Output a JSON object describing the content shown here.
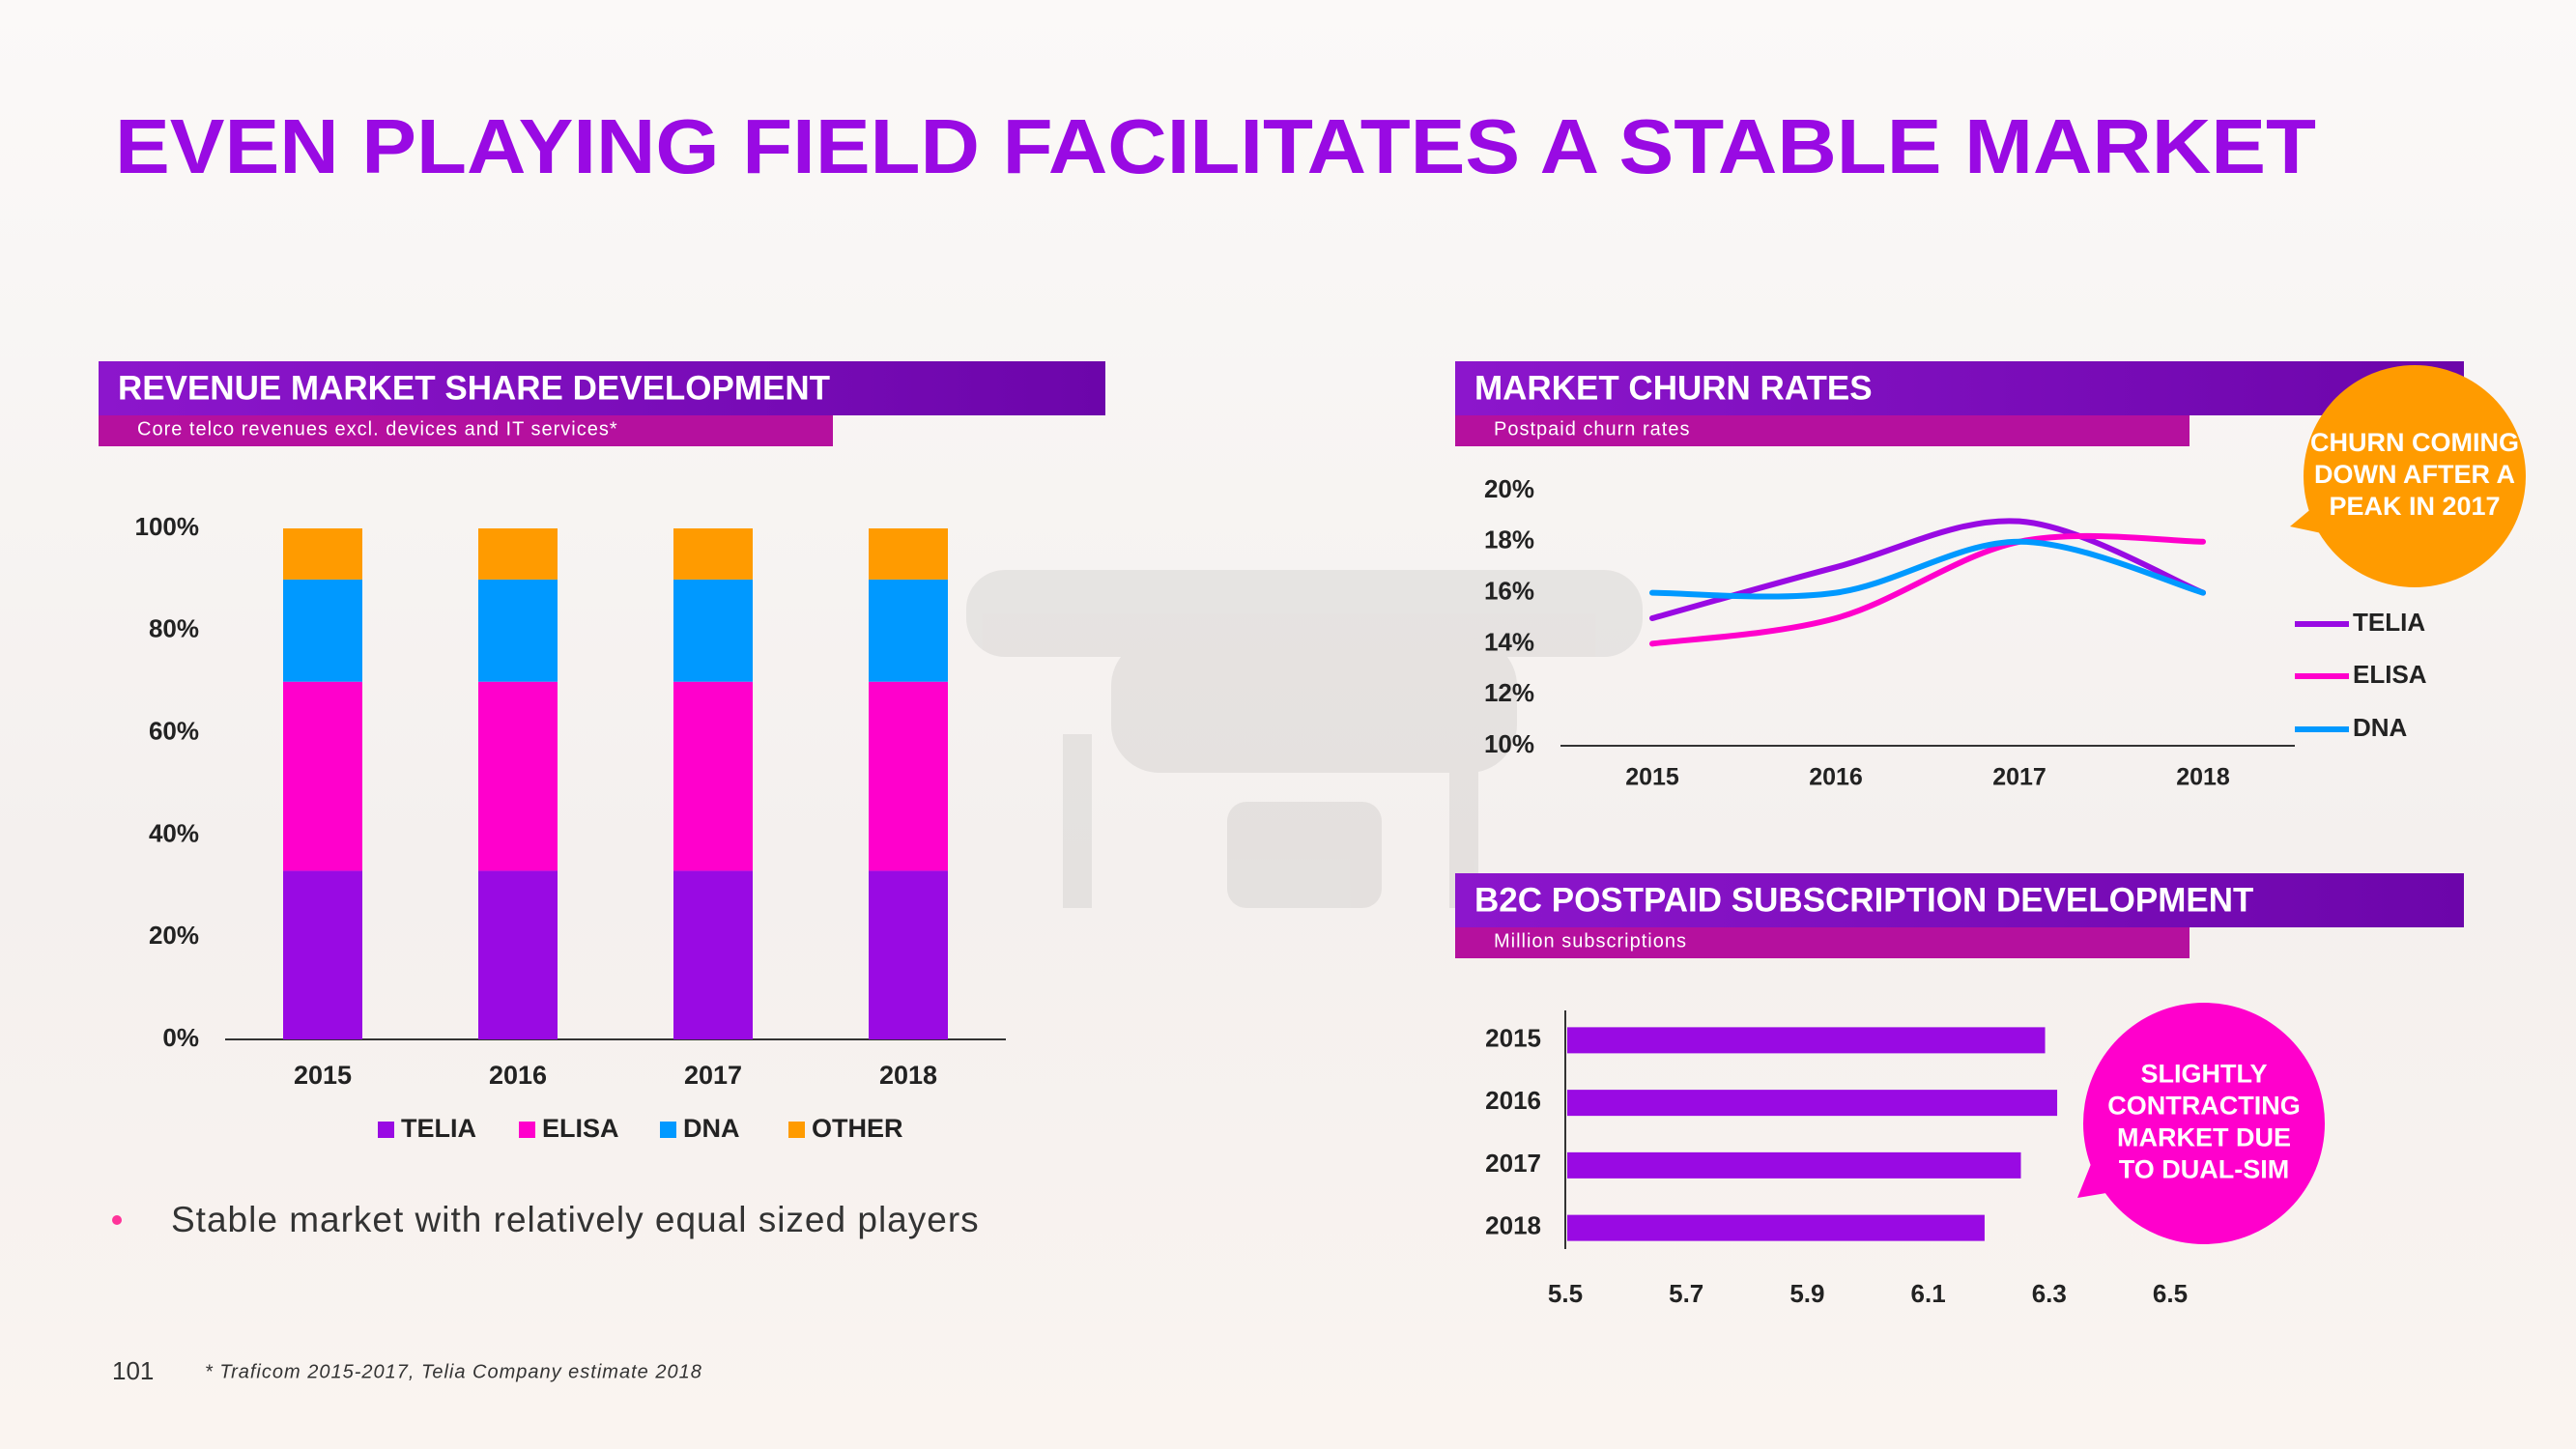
{
  "title": "EVEN PLAYING FIELD FACILITATES A STABLE MARKET",
  "bullet": "Stable market with relatively equal sized players",
  "page_number": "101",
  "footnote": "* Traficom 2015-2017, Telia Company estimate 2018",
  "chart_data": [
    {
      "type": "bar",
      "stacked": true,
      "title": "REVENUE MARKET SHARE DEVELOPMENT",
      "subtitle": "Core telco revenues excl. devices and IT services*",
      "categories": [
        "2015",
        "2016",
        "2017",
        "2018"
      ],
      "series": [
        {
          "name": "TELIA",
          "color": "#990ae3",
          "values": [
            33,
            33,
            33,
            33
          ]
        },
        {
          "name": "ELISA",
          "color": "#ff00cc",
          "values": [
            37,
            37,
            37,
            37
          ]
        },
        {
          "name": "DNA",
          "color": "#0099ff",
          "values": [
            20,
            20,
            20,
            20
          ]
        },
        {
          "name": "OTHER",
          "color": "#ff9b00",
          "values": [
            10,
            10,
            10,
            10
          ]
        }
      ],
      "ylim": [
        0,
        100
      ],
      "yticks": [
        {
          "value": 0,
          "label": "0%"
        },
        {
          "value": 20,
          "label": "20%"
        },
        {
          "value": 40,
          "label": "40%"
        },
        {
          "value": 60,
          "label": "60%"
        },
        {
          "value": 80,
          "label": "80%"
        },
        {
          "value": 100,
          "label": "100%"
        }
      ],
      "legend": "bottom"
    },
    {
      "type": "line",
      "title": "MARKET CHURN RATES",
      "subtitle": "Postpaid churn rates",
      "categories": [
        "2015",
        "2016",
        "2017",
        "2018"
      ],
      "series": [
        {
          "name": "TELIA",
          "color": "#990ae3",
          "values": [
            15,
            17,
            18.8,
            16
          ]
        },
        {
          "name": "ELISA",
          "color": "#ff00cc",
          "values": [
            14,
            15,
            18,
            18
          ]
        },
        {
          "name": "DNA",
          "color": "#0099ff",
          "values": [
            16,
            16,
            18,
            16
          ]
        }
      ],
      "ylim": [
        10,
        20
      ],
      "yticks": [
        {
          "value": 10,
          "label": "10%"
        },
        {
          "value": 12,
          "label": "12%"
        },
        {
          "value": 14,
          "label": "14%"
        },
        {
          "value": 16,
          "label": "16%"
        },
        {
          "value": 18,
          "label": "18%"
        },
        {
          "value": 20,
          "label": "20%"
        }
      ],
      "legend": "right",
      "annotation": [
        "CHURN COMING",
        "DOWN AFTER A",
        "PEAK IN 2017"
      ],
      "annotation_color": "#ff9b00"
    },
    {
      "type": "bar",
      "horizontal": true,
      "title": "B2C POSTPAID SUBSCRIPTION DEVELOPMENT",
      "subtitle": "Million subscriptions",
      "categories": [
        "2015",
        "2016",
        "2017",
        "2018"
      ],
      "values": [
        6.29,
        6.31,
        6.25,
        6.19
      ],
      "color": "#990ae3",
      "xlim": [
        5.5,
        6.5
      ],
      "xticks": [
        5.5,
        5.7,
        5.9,
        6.1,
        6.3,
        6.5
      ],
      "annotation": [
        "SLIGHTLY",
        "CONTRACTING",
        "MARKET DUE",
        "TO DUAL-SIM"
      ],
      "annotation_color": "#ff00cc"
    }
  ]
}
